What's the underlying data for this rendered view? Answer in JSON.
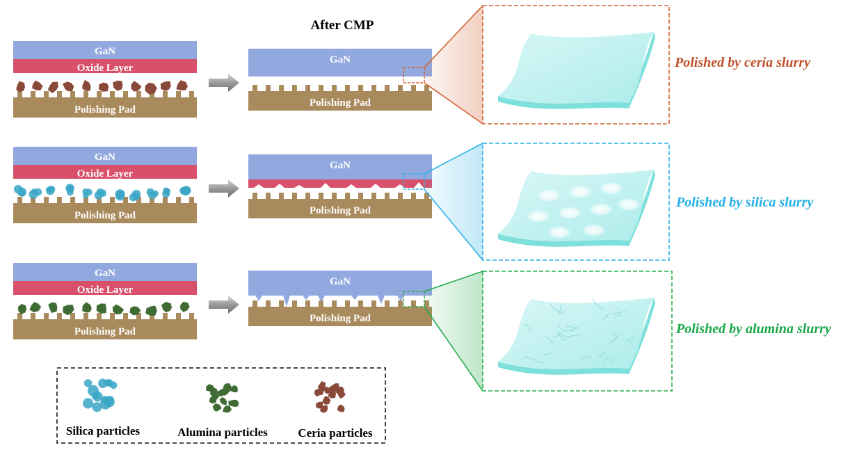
{
  "title": "After CMP",
  "labels": {
    "gan": "GaN",
    "oxide": "Oxide Layer",
    "pad": "Polishing Pad"
  },
  "rows": [
    {
      "id": "ceria",
      "result": "Polished by ceria slurry",
      "color": "#c0502a",
      "particle_color": "#8a4a3a",
      "frame_color": "#d2602e"
    },
    {
      "id": "silica",
      "result": "Polished by silica slurry",
      "color": "#22aee8",
      "particle_color": "#3aa6c4",
      "frame_color": "#2bb2e6"
    },
    {
      "id": "alumina",
      "result": "Polished by alumina slurry",
      "color": "#18a84a",
      "particle_color": "#3f6b34",
      "frame_color": "#26ad4c"
    }
  ],
  "legend": {
    "items": [
      {
        "id": "silica",
        "label": "Silica particles",
        "color": "#3aa6c4"
      },
      {
        "id": "alumina",
        "label": "Alumina particles",
        "color": "#3f6b34"
      },
      {
        "id": "ceria",
        "label": "Ceria particles",
        "color": "#8a4a3a"
      }
    ]
  },
  "colors": {
    "gan": "#92a9e0",
    "oxide": "#d9506a",
    "pad": "#a98a5c",
    "sheet": "#bff1f0",
    "sheet_edge": "#7ee0dc",
    "arrow": "#8a8a8a"
  }
}
